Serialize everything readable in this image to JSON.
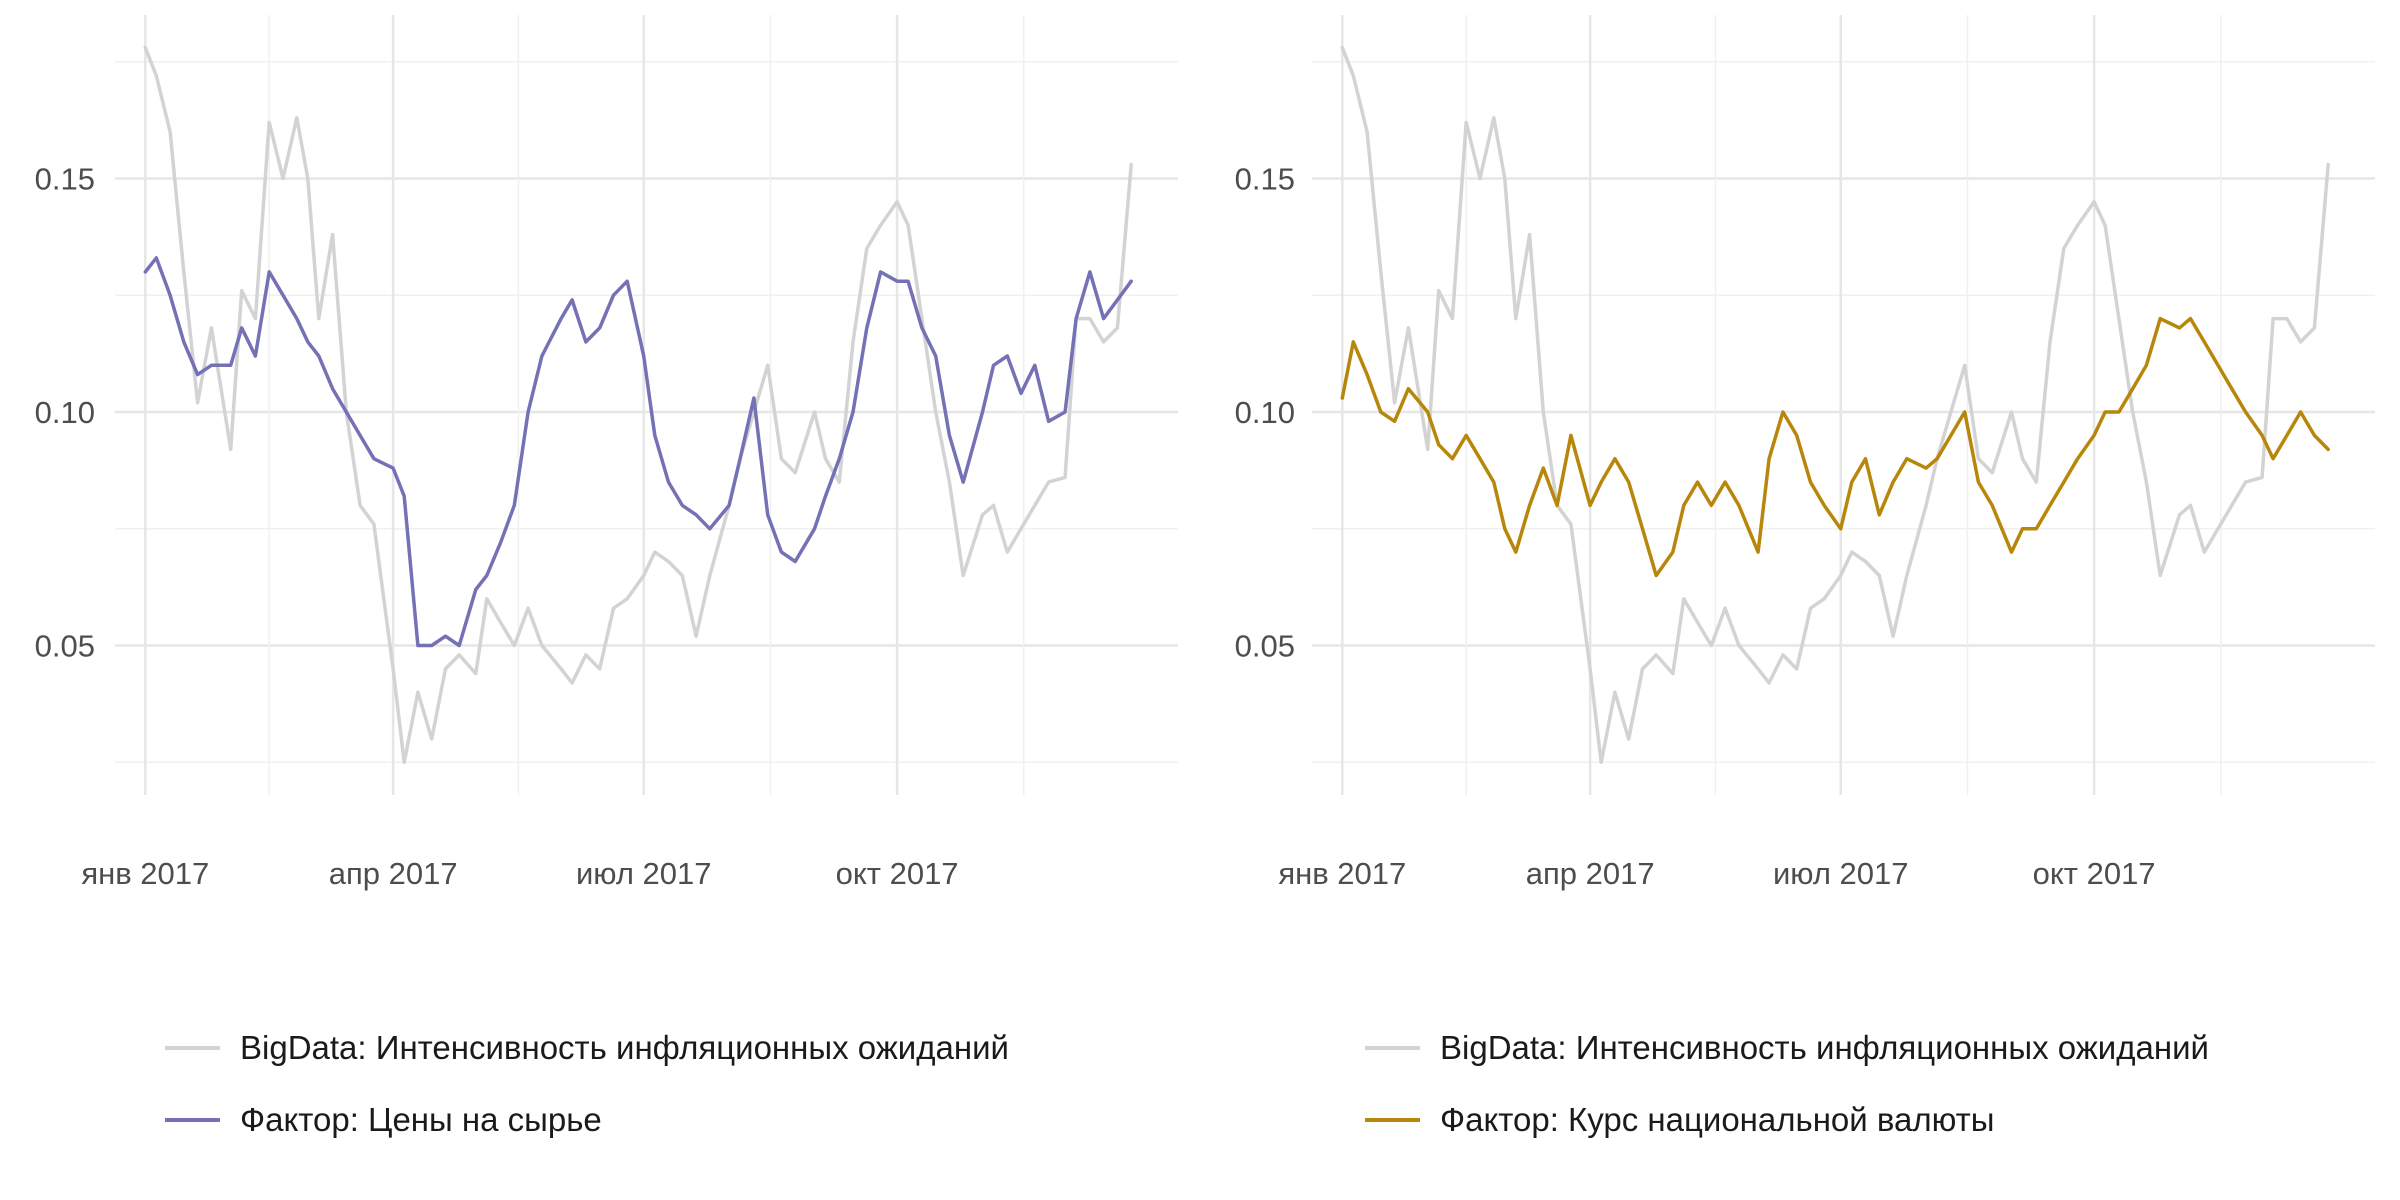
{
  "chart_data": [
    {
      "type": "line",
      "title": "",
      "xlabel": "",
      "ylabel": "",
      "x_ticks": [
        "янв 2017",
        "апр 2017",
        "июл 2017",
        "окт 2017"
      ],
      "y_ticks": [
        "0.05",
        "0.10",
        "0.15"
      ],
      "ylim": [
        0.018,
        0.185
      ],
      "xlim": [
        "2016-12-21",
        "2018-01-11"
      ],
      "grid": true,
      "legend_position": "bottom",
      "series": [
        {
          "name": "BigData: Интенсивность инфляционных ожиданий",
          "color": "#d3d3d3",
          "x": [
            "2017-01-01",
            "2017-01-05",
            "2017-01-10",
            "2017-01-15",
            "2017-01-20",
            "2017-01-25",
            "2017-02-01",
            "2017-02-05",
            "2017-02-10",
            "2017-02-15",
            "2017-02-20",
            "2017-02-25",
            "2017-03-01",
            "2017-03-05",
            "2017-03-10",
            "2017-03-15",
            "2017-03-20",
            "2017-03-25",
            "2017-04-01",
            "2017-04-05",
            "2017-04-10",
            "2017-04-15",
            "2017-04-20",
            "2017-04-25",
            "2017-05-01",
            "2017-05-05",
            "2017-05-10",
            "2017-05-15",
            "2017-05-20",
            "2017-05-25",
            "2017-06-01",
            "2017-06-05",
            "2017-06-10",
            "2017-06-15",
            "2017-06-20",
            "2017-06-25",
            "2017-07-01",
            "2017-07-05",
            "2017-07-10",
            "2017-07-15",
            "2017-07-20",
            "2017-07-25",
            "2017-08-01",
            "2017-08-05",
            "2017-08-10",
            "2017-08-15",
            "2017-08-20",
            "2017-08-25",
            "2017-09-01",
            "2017-09-05",
            "2017-09-10",
            "2017-09-15",
            "2017-09-20",
            "2017-09-25",
            "2017-10-01",
            "2017-10-05",
            "2017-10-10",
            "2017-10-15",
            "2017-10-20",
            "2017-10-25",
            "2017-11-01",
            "2017-11-05",
            "2017-11-10",
            "2017-11-15",
            "2017-11-20",
            "2017-11-25",
            "2017-12-01",
            "2017-12-05",
            "2017-12-10",
            "2017-12-15",
            "2017-12-20",
            "2017-12-25"
          ],
          "y": [
            0.178,
            0.172,
            0.16,
            0.13,
            0.102,
            0.118,
            0.092,
            0.126,
            0.12,
            0.162,
            0.15,
            0.163,
            0.15,
            0.12,
            0.138,
            0.1,
            0.08,
            0.076,
            0.045,
            0.025,
            0.04,
            0.03,
            0.045,
            0.048,
            0.044,
            0.06,
            0.055,
            0.05,
            0.058,
            0.05,
            0.045,
            0.042,
            0.048,
            0.045,
            0.058,
            0.06,
            0.065,
            0.07,
            0.068,
            0.065,
            0.052,
            0.065,
            0.08,
            0.09,
            0.1,
            0.11,
            0.09,
            0.087,
            0.1,
            0.09,
            0.085,
            0.115,
            0.135,
            0.14,
            0.145,
            0.14,
            0.12,
            0.1,
            0.085,
            0.065,
            0.078,
            0.08,
            0.07,
            0.075,
            0.08,
            0.085,
            0.086,
            0.12,
            0.12,
            0.115,
            0.118,
            0.153
          ]
        },
        {
          "name": "Фактор: Цены на сырье",
          "color": "#7471b5",
          "x": [
            "2017-01-01",
            "2017-01-05",
            "2017-01-10",
            "2017-01-15",
            "2017-01-20",
            "2017-01-25",
            "2017-02-01",
            "2017-02-05",
            "2017-02-10",
            "2017-02-15",
            "2017-02-20",
            "2017-02-25",
            "2017-03-01",
            "2017-03-05",
            "2017-03-10",
            "2017-03-15",
            "2017-03-20",
            "2017-03-25",
            "2017-04-01",
            "2017-04-05",
            "2017-04-10",
            "2017-04-15",
            "2017-04-20",
            "2017-04-25",
            "2017-05-01",
            "2017-05-05",
            "2017-05-10",
            "2017-05-15",
            "2017-05-20",
            "2017-05-25",
            "2017-06-01",
            "2017-06-05",
            "2017-06-10",
            "2017-06-15",
            "2017-06-20",
            "2017-06-25",
            "2017-07-01",
            "2017-07-05",
            "2017-07-10",
            "2017-07-15",
            "2017-07-20",
            "2017-07-25",
            "2017-08-01",
            "2017-08-05",
            "2017-08-10",
            "2017-08-15",
            "2017-08-20",
            "2017-08-25",
            "2017-09-01",
            "2017-09-05",
            "2017-09-10",
            "2017-09-15",
            "2017-09-20",
            "2017-09-25",
            "2017-10-01",
            "2017-10-05",
            "2017-10-10",
            "2017-10-15",
            "2017-10-20",
            "2017-10-25",
            "2017-11-01",
            "2017-11-05",
            "2017-11-10",
            "2017-11-15",
            "2017-11-20",
            "2017-11-25",
            "2017-12-01",
            "2017-12-05",
            "2017-12-10",
            "2017-12-15",
            "2017-12-20",
            "2017-12-25"
          ],
          "y": [
            0.13,
            0.133,
            0.125,
            0.115,
            0.108,
            0.11,
            0.11,
            0.118,
            0.112,
            0.13,
            0.125,
            0.12,
            0.115,
            0.112,
            0.105,
            0.1,
            0.095,
            0.09,
            0.088,
            0.082,
            0.05,
            0.05,
            0.052,
            0.05,
            0.062,
            0.065,
            0.072,
            0.08,
            0.1,
            0.112,
            0.12,
            0.124,
            0.115,
            0.118,
            0.125,
            0.128,
            0.112,
            0.095,
            0.085,
            0.08,
            0.078,
            0.075,
            0.08,
            0.09,
            0.103,
            0.078,
            0.07,
            0.068,
            0.075,
            0.082,
            0.09,
            0.1,
            0.118,
            0.13,
            0.128,
            0.128,
            0.118,
            0.112,
            0.095,
            0.085,
            0.1,
            0.11,
            0.112,
            0.104,
            0.11,
            0.098,
            0.1,
            0.12,
            0.13,
            0.12,
            0.124,
            0.128
          ]
        }
      ]
    },
    {
      "type": "line",
      "title": "",
      "xlabel": "",
      "ylabel": "",
      "x_ticks": [
        "янв 2017",
        "апр 2017",
        "июл 2017",
        "окт 2017"
      ],
      "y_ticks": [
        "0.05",
        "0.10",
        "0.15"
      ],
      "ylim": [
        0.018,
        0.185
      ],
      "xlim": [
        "2016-12-21",
        "2018-01-11"
      ],
      "grid": true,
      "legend_position": "bottom",
      "series": [
        {
          "name": "BigData: Интенсивность инфляционных ожиданий",
          "color": "#d3d3d3",
          "x": [
            "2017-01-01",
            "2017-01-05",
            "2017-01-10",
            "2017-01-15",
            "2017-01-20",
            "2017-01-25",
            "2017-02-01",
            "2017-02-05",
            "2017-02-10",
            "2017-02-15",
            "2017-02-20",
            "2017-02-25",
            "2017-03-01",
            "2017-03-05",
            "2017-03-10",
            "2017-03-15",
            "2017-03-20",
            "2017-03-25",
            "2017-04-01",
            "2017-04-05",
            "2017-04-10",
            "2017-04-15",
            "2017-04-20",
            "2017-04-25",
            "2017-05-01",
            "2017-05-05",
            "2017-05-10",
            "2017-05-15",
            "2017-05-20",
            "2017-05-25",
            "2017-06-01",
            "2017-06-05",
            "2017-06-10",
            "2017-06-15",
            "2017-06-20",
            "2017-06-25",
            "2017-07-01",
            "2017-07-05",
            "2017-07-10",
            "2017-07-15",
            "2017-07-20",
            "2017-07-25",
            "2017-08-01",
            "2017-08-05",
            "2017-08-10",
            "2017-08-15",
            "2017-08-20",
            "2017-08-25",
            "2017-09-01",
            "2017-09-05",
            "2017-09-10",
            "2017-09-15",
            "2017-09-20",
            "2017-09-25",
            "2017-10-01",
            "2017-10-05",
            "2017-10-10",
            "2017-10-15",
            "2017-10-20",
            "2017-10-25",
            "2017-11-01",
            "2017-11-05",
            "2017-11-10",
            "2017-11-15",
            "2017-11-20",
            "2017-11-25",
            "2017-12-01",
            "2017-12-05",
            "2017-12-10",
            "2017-12-15",
            "2017-12-20",
            "2017-12-25"
          ],
          "y": [
            0.178,
            0.172,
            0.16,
            0.13,
            0.102,
            0.118,
            0.092,
            0.126,
            0.12,
            0.162,
            0.15,
            0.163,
            0.15,
            0.12,
            0.138,
            0.1,
            0.08,
            0.076,
            0.045,
            0.025,
            0.04,
            0.03,
            0.045,
            0.048,
            0.044,
            0.06,
            0.055,
            0.05,
            0.058,
            0.05,
            0.045,
            0.042,
            0.048,
            0.045,
            0.058,
            0.06,
            0.065,
            0.07,
            0.068,
            0.065,
            0.052,
            0.065,
            0.08,
            0.09,
            0.1,
            0.11,
            0.09,
            0.087,
            0.1,
            0.09,
            0.085,
            0.115,
            0.135,
            0.14,
            0.145,
            0.14,
            0.12,
            0.1,
            0.085,
            0.065,
            0.078,
            0.08,
            0.07,
            0.075,
            0.08,
            0.085,
            0.086,
            0.12,
            0.12,
            0.115,
            0.118,
            0.153
          ]
        },
        {
          "name": "Фактор: Курс национальной валюты",
          "color": "#b8860b",
          "x": [
            "2017-01-01",
            "2017-01-05",
            "2017-01-10",
            "2017-01-15",
            "2017-01-20",
            "2017-01-25",
            "2017-02-01",
            "2017-02-05",
            "2017-02-10",
            "2017-02-15",
            "2017-02-20",
            "2017-02-25",
            "2017-03-01",
            "2017-03-05",
            "2017-03-10",
            "2017-03-15",
            "2017-03-20",
            "2017-03-25",
            "2017-04-01",
            "2017-04-05",
            "2017-04-10",
            "2017-04-15",
            "2017-04-20",
            "2017-04-25",
            "2017-05-01",
            "2017-05-05",
            "2017-05-10",
            "2017-05-15",
            "2017-05-20",
            "2017-05-25",
            "2017-06-01",
            "2017-06-05",
            "2017-06-10",
            "2017-06-15",
            "2017-06-20",
            "2017-06-25",
            "2017-07-01",
            "2017-07-05",
            "2017-07-10",
            "2017-07-15",
            "2017-07-20",
            "2017-07-25",
            "2017-08-01",
            "2017-08-05",
            "2017-08-10",
            "2017-08-15",
            "2017-08-20",
            "2017-08-25",
            "2017-09-01",
            "2017-09-05",
            "2017-09-10",
            "2017-09-15",
            "2017-09-20",
            "2017-09-25",
            "2017-10-01",
            "2017-10-05",
            "2017-10-10",
            "2017-10-15",
            "2017-10-20",
            "2017-10-25",
            "2017-11-01",
            "2017-11-05",
            "2017-11-10",
            "2017-11-15",
            "2017-11-20",
            "2017-11-25",
            "2017-12-01",
            "2017-12-05",
            "2017-12-10",
            "2017-12-15",
            "2017-12-20",
            "2017-12-25"
          ],
          "y": [
            0.103,
            0.115,
            0.108,
            0.1,
            0.098,
            0.105,
            0.1,
            0.093,
            0.09,
            0.095,
            0.09,
            0.085,
            0.075,
            0.07,
            0.08,
            0.088,
            0.08,
            0.095,
            0.08,
            0.085,
            0.09,
            0.085,
            0.075,
            0.065,
            0.07,
            0.08,
            0.085,
            0.08,
            0.085,
            0.08,
            0.07,
            0.09,
            0.1,
            0.095,
            0.085,
            0.08,
            0.075,
            0.085,
            0.09,
            0.078,
            0.085,
            0.09,
            0.088,
            0.09,
            0.095,
            0.1,
            0.085,
            0.08,
            0.07,
            0.075,
            0.075,
            0.08,
            0.085,
            0.09,
            0.095,
            0.1,
            0.1,
            0.105,
            0.11,
            0.12,
            0.118,
            0.12,
            0.115,
            0.11,
            0.105,
            0.1,
            0.095,
            0.09,
            0.095,
            0.1,
            0.095,
            0.092
          ]
        }
      ]
    }
  ]
}
